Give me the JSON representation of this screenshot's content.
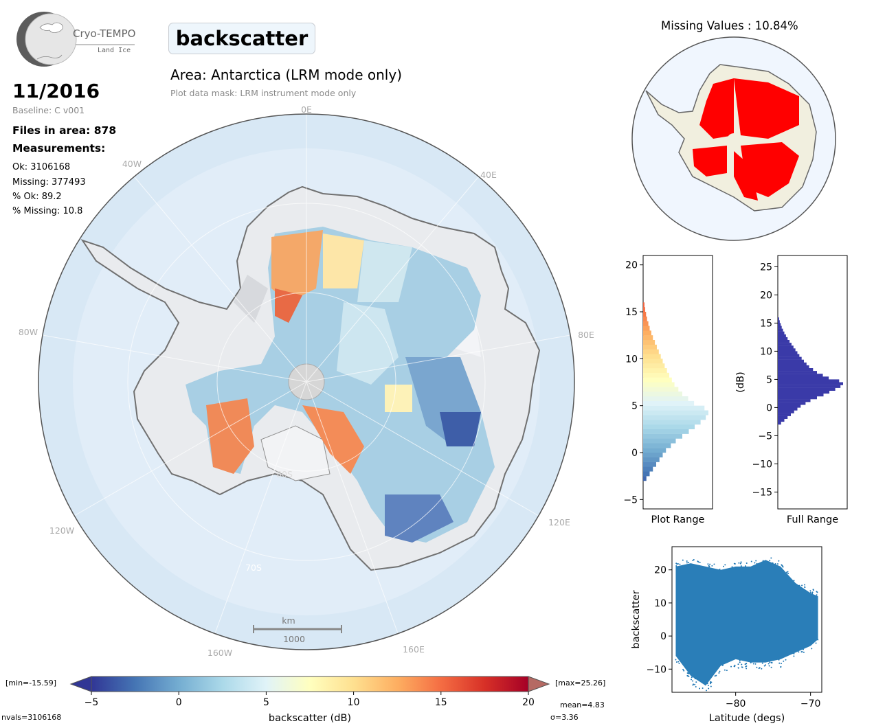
{
  "header": {
    "logo_name": "Cryo-TEMPO",
    "logo_sub": "Land Ice",
    "variable": "backscatter",
    "area_title": "Area: Antarctica (LRM mode only)",
    "mask_note": "Plot data mask: LRM instrument mode only",
    "date": "11/2016",
    "baseline": "Baseline: C v001",
    "files": "Files in area: 878",
    "measurements_heading": "Measurements:",
    "ok": "Ok: 3106168",
    "missing": "Missing: 377493",
    "pct_ok": "% Ok: 89.2",
    "pct_missing": "% Missing: 10.8"
  },
  "map": {
    "lon_labels": {
      "l0E": "0E",
      "l40W": "40W",
      "l40E": "40E",
      "l80W": "80W",
      "l80E": "80E",
      "l120W": "120W",
      "l120E": "120E",
      "l160W": "160W",
      "l160E": "160E"
    },
    "lat_labels": {
      "l80S": "80S",
      "l70S": "70S"
    },
    "scale_unit": "km",
    "scale_value": "1000"
  },
  "missing_map": {
    "title": "Missing Values : 10.84%"
  },
  "footer": {
    "min_label": "[min=-15.59]",
    "max_label": "[max=25.26]",
    "nvals": "nvals=3106168",
    "mean": "mean=4.83",
    "sigma": "σ=3.36"
  },
  "colors": {
    "ocean": "#d8e8f5",
    "ice": "#e9ebee",
    "missing": "#ff0000",
    "scatter": "#1f77b4",
    "full_hist": "#3a3aa8"
  },
  "chart_data": [
    {
      "type": "colorbar",
      "xlabel": "backscatter (dB)",
      "range": [
        -5,
        20
      ],
      "ticks": [
        -5,
        0,
        5,
        10,
        15,
        20
      ],
      "colormap": "RdYlBu_r"
    },
    {
      "type": "bar",
      "orientation": "horizontal",
      "xlabel": "Plot Range",
      "ylim": [
        -6,
        21
      ],
      "yticks": [
        -5,
        0,
        5,
        10,
        15,
        20
      ],
      "bins": [
        -3,
        -2,
        -1,
        0,
        1,
        2,
        3,
        3.5,
        4,
        4.5,
        5,
        6,
        7,
        8,
        9,
        10,
        11,
        12,
        13,
        14,
        15,
        16
      ],
      "values": [
        0.05,
        0.15,
        0.25,
        0.35,
        0.5,
        0.7,
        0.88,
        0.96,
        1.0,
        0.94,
        0.78,
        0.6,
        0.48,
        0.4,
        0.33,
        0.27,
        0.21,
        0.15,
        0.1,
        0.06,
        0.03,
        0.01
      ]
    },
    {
      "type": "bar",
      "orientation": "horizontal",
      "xlabel": "Full Range",
      "ylabel": "(dB)",
      "ylim": [
        -18,
        27
      ],
      "yticks": [
        -15,
        -10,
        -5,
        0,
        5,
        10,
        15,
        20,
        25
      ],
      "bins": [
        -3,
        -2,
        -1,
        0,
        1,
        2,
        3,
        3.5,
        4,
        4.5,
        5,
        6,
        7,
        8,
        9,
        10,
        11,
        12,
        13,
        14,
        15,
        16
      ],
      "values": [
        0.05,
        0.15,
        0.25,
        0.35,
        0.5,
        0.7,
        0.88,
        0.96,
        1.0,
        0.94,
        0.78,
        0.6,
        0.48,
        0.4,
        0.33,
        0.27,
        0.21,
        0.15,
        0.1,
        0.06,
        0.03,
        0.01
      ]
    },
    {
      "type": "scatter",
      "xlabel": "Latitude (degs)",
      "ylabel": "backscatter",
      "xlim": [
        -88.5,
        -68.5
      ],
      "ylim": [
        -17,
        27
      ],
      "xticks": [
        -80,
        -70
      ],
      "yticks": [
        -10,
        0,
        10,
        20
      ],
      "envelope_x": [
        -88,
        -86,
        -84,
        -82,
        -80,
        -78,
        -76,
        -74,
        -72,
        -70,
        -69
      ],
      "envelope_upper": [
        21,
        22,
        21,
        20,
        21,
        21,
        23,
        21,
        16,
        13,
        12
      ],
      "envelope_lower": [
        -6,
        -12,
        -15,
        -9,
        -7,
        -8,
        -8,
        -7,
        -5,
        -3,
        -1
      ]
    }
  ]
}
